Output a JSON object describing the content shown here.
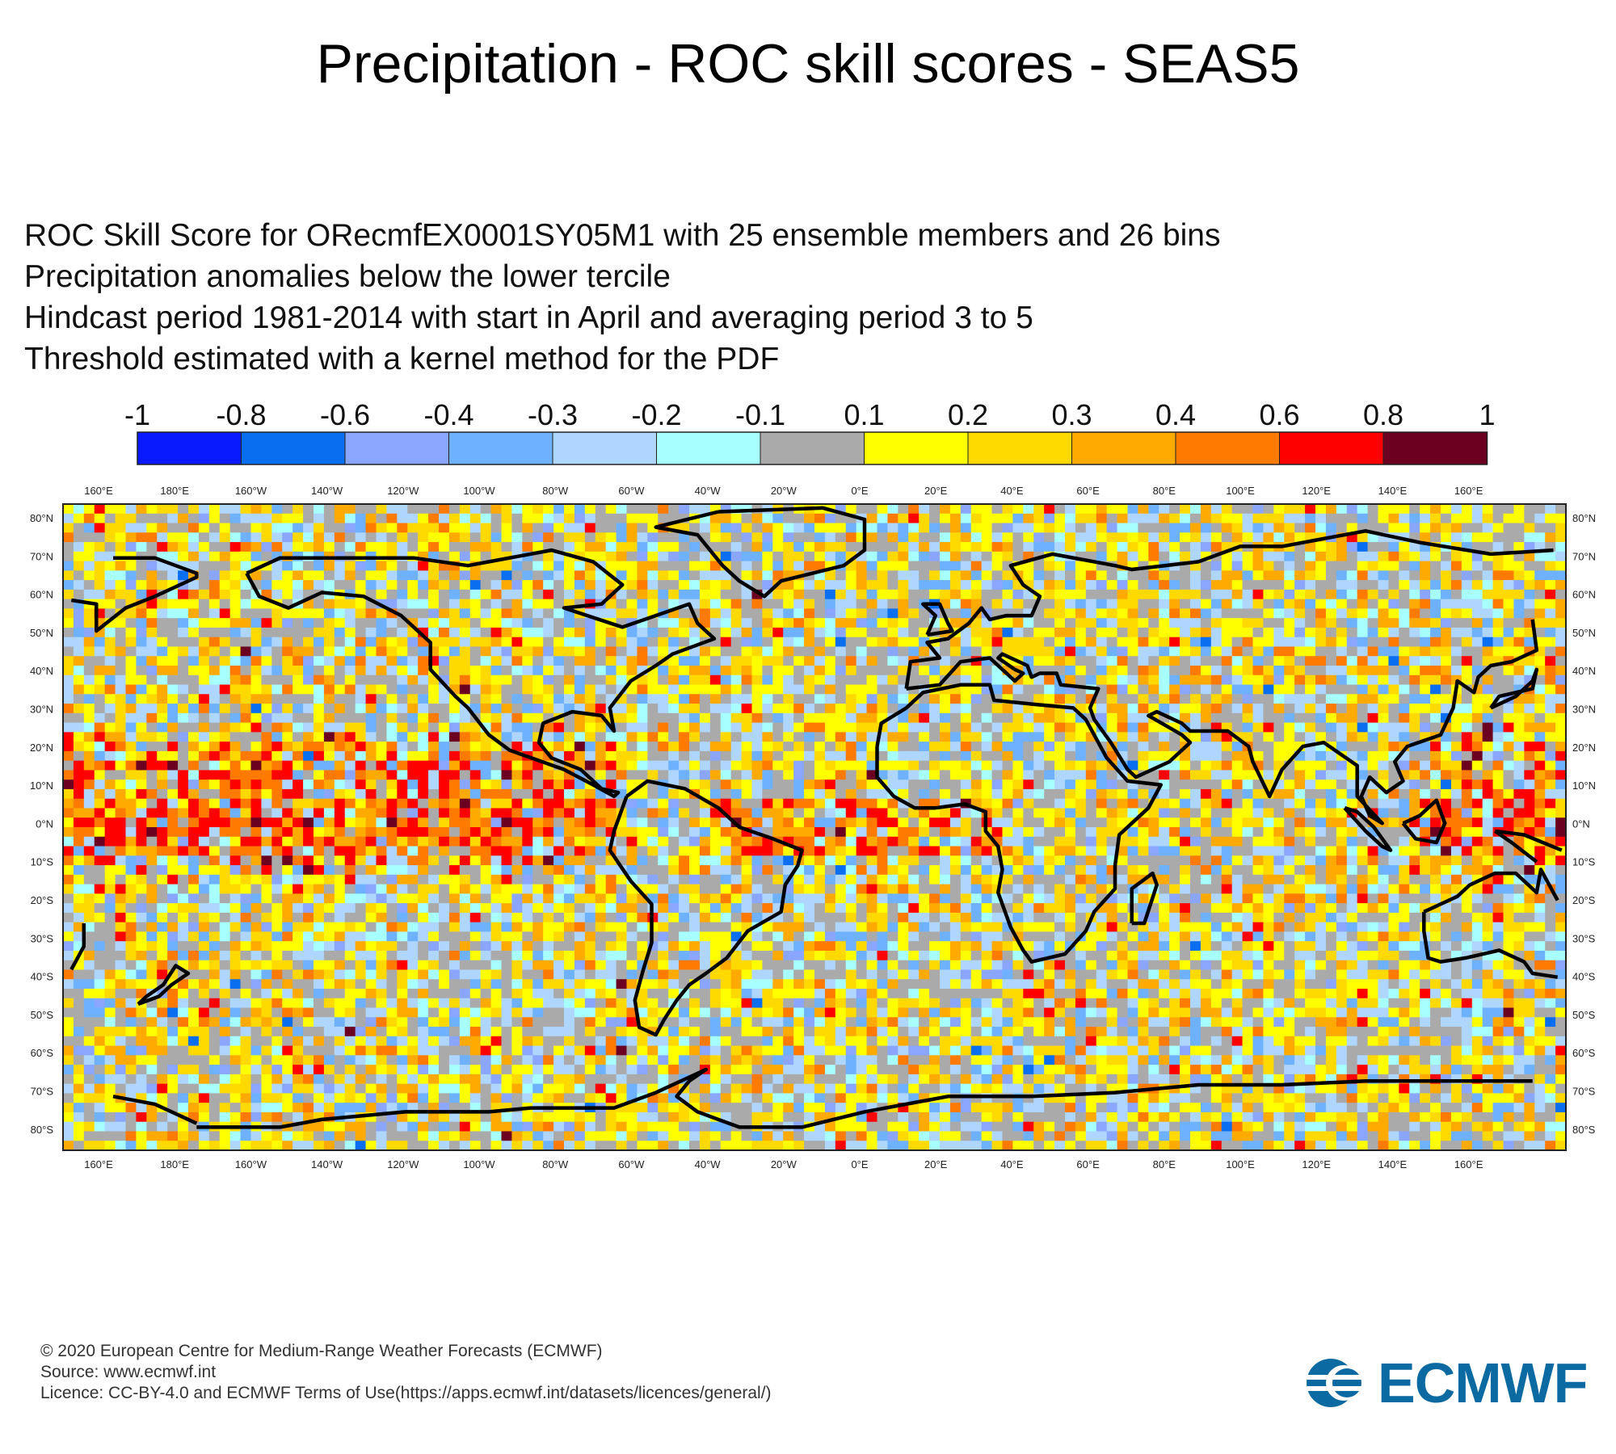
{
  "title": "Precipitation - ROC skill scores - SEAS5",
  "subtitle_lines": [
    "ROC Skill Score for ORecmfEX0001SY05M1 with 25 ensemble members and 26 bins",
    "Precipitation anomalies below the lower tercile",
    "Hindcast period 1981-2014 with start in April and averaging period  3 to  5",
    "Threshold estimated with a kernel method for the PDF"
  ],
  "legend": {
    "ticks": [
      "-1",
      "-0.8",
      "-0.6",
      "-0.4",
      "-0.3",
      "-0.2",
      "-0.1",
      "0.1",
      "0.2",
      "0.3",
      "0.4",
      "0.6",
      "0.8",
      "1"
    ],
    "colors": [
      "#0a1aff",
      "#0a6ef0",
      "#8aa6ff",
      "#6eb2ff",
      "#afd6ff",
      "#a8ffff",
      "#aaaaaa",
      "#ffff00",
      "#ffd900",
      "#ffaa00",
      "#ff7a00",
      "#ff0000",
      "#6b0020"
    ]
  },
  "map": {
    "lon_labels": [
      "160°E",
      "180°E",
      "160°W",
      "140°W",
      "120°W",
      "100°W",
      "80°W",
      "60°W",
      "40°W",
      "20°W",
      "0°E",
      "20°E",
      "40°E",
      "60°E",
      "80°E",
      "100°E",
      "120°E",
      "140°E",
      "160°E"
    ],
    "lat_labels": [
      "80°N",
      "70°N",
      "60°N",
      "50°N",
      "40°N",
      "30°N",
      "20°N",
      "10°N",
      "0°N",
      "10°S",
      "20°S",
      "30°S",
      "40°S",
      "50°S",
      "60°S",
      "70°S",
      "80°S"
    ],
    "grid_color": "#aaaaaa",
    "coastline_color": "#000000"
  },
  "footer": {
    "copyright": "© 2020 European Centre for Medium-Range Weather Forecasts (ECMWF)",
    "source": "Source: www.ecmwf.int",
    "licence": "Licence: CC-BY-4.0 and ECMWF Terms of Use(https://apps.ecmwf.int/datasets/licences/general/)"
  },
  "logo": {
    "text": "ECMWF",
    "color": "#0b6aa2"
  }
}
